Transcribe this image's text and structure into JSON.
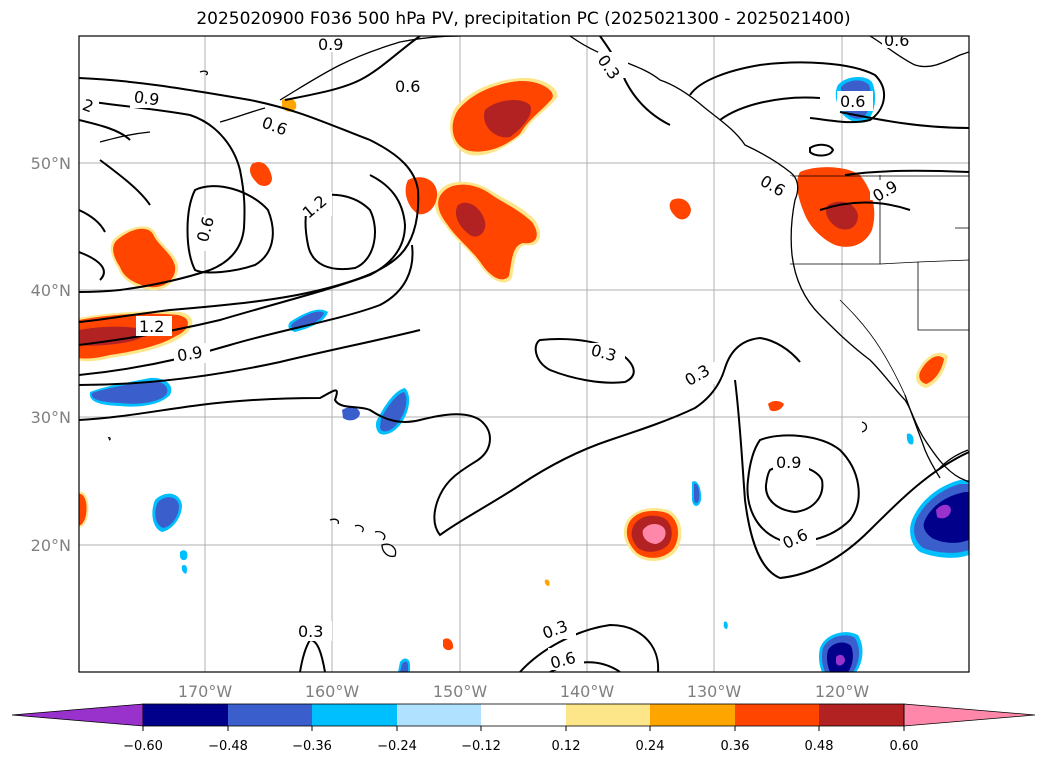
{
  "title": "2025020900 F036 500 hPa PV, precipitation PC (2025021300 - 2025021400)",
  "lon_ticks": [
    "170°W",
    "160°W",
    "150°W",
    "140°W",
    "130°W",
    "120°W"
  ],
  "lat_ticks": [
    "50°N",
    "40°N",
    "30°N",
    "20°N"
  ],
  "colorbar": {
    "colors": [
      "#9932cc",
      "#00008b",
      "#3a5fcd",
      "#00bfff",
      "#b0e2ff",
      "#ffffff",
      "#fde68a",
      "#ffa500",
      "#ff4500",
      "#b22222",
      "#ff88aa"
    ],
    "tick_labels": [
      "−0.60",
      "−0.48",
      "−0.36",
      "−0.24",
      "−0.12",
      "0.12",
      "0.24",
      "0.36",
      "0.48",
      "0.60"
    ]
  },
  "contour_labels": [
    {
      "text": "0.9"
    },
    {
      "text": "0.6"
    },
    {
      "text": "0.3"
    },
    {
      "text": "0.6"
    },
    {
      "text": "0.9"
    },
    {
      "text": "0.6"
    },
    {
      "text": "0.6"
    },
    {
      "text": "1.2"
    },
    {
      "text": "0.6"
    },
    {
      "text": "1.2"
    },
    {
      "text": "0.9"
    },
    {
      "text": "0.3"
    },
    {
      "text": "0.3"
    },
    {
      "text": "0.9"
    },
    {
      "text": "0.6"
    },
    {
      "text": "0.3"
    },
    {
      "text": "0.3"
    },
    {
      "text": "0.6"
    },
    {
      "text": "0.6"
    },
    {
      "text": "0.9"
    },
    {
      "text": "2"
    }
  ]
}
